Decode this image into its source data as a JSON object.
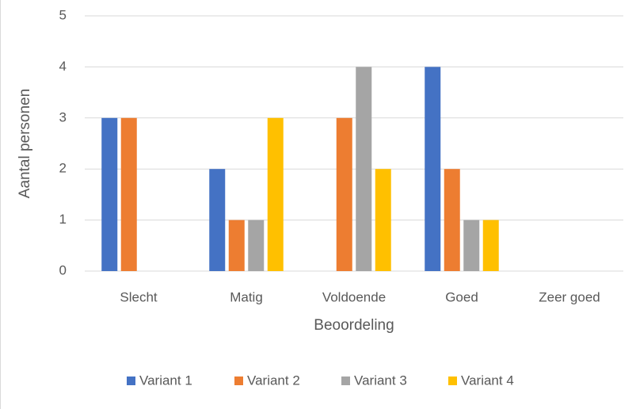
{
  "chart_data": {
    "type": "bar",
    "categories": [
      "Slecht",
      "Matig",
      "Voldoende",
      "Goed",
      "Zeer goed"
    ],
    "series": [
      {
        "name": "Variant 1",
        "color": "#4472c4",
        "values": [
          3,
          2,
          0,
          4,
          0
        ]
      },
      {
        "name": "Variant 2",
        "color": "#ed7d31",
        "values": [
          3,
          1,
          3,
          2,
          0
        ]
      },
      {
        "name": "Variant 3",
        "color": "#a5a5a5",
        "values": [
          0,
          1,
          4,
          1,
          0
        ]
      },
      {
        "name": "Variant 4",
        "color": "#ffc000",
        "values": [
          0,
          3,
          2,
          1,
          0
        ]
      }
    ],
    "xlabel": "Beoordeling",
    "ylabel": "Aantal personen",
    "ylim": [
      0,
      5
    ],
    "yticks": [
      0,
      1,
      2,
      3,
      4,
      5
    ],
    "grid": true,
    "legend": "bottom"
  }
}
